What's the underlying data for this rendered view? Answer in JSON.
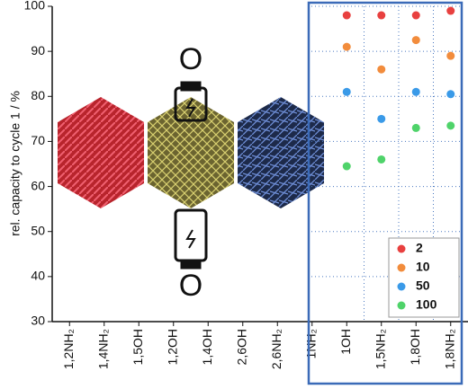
{
  "chart_data": {
    "type": "scatter",
    "ylabel": "rel. capacity to cycle 1 / %",
    "categories": [
      "1,2NH₂",
      "1,4NH₂",
      "1,5OH",
      "1,2OH",
      "1,4OH",
      "2,6OH",
      "2,6NH₂",
      "1NH₂",
      "1OH",
      "1,5NH₂",
      "1,8OH",
      "1,8NH₂"
    ],
    "series": [
      {
        "name": "2",
        "color": "#e8403f",
        "values": [
          null,
          null,
          null,
          null,
          null,
          null,
          null,
          null,
          98,
          98,
          98,
          99
        ]
      },
      {
        "name": "10",
        "color": "#f28c3c",
        "values": [
          null,
          null,
          null,
          null,
          null,
          null,
          null,
          null,
          91,
          86,
          92.5,
          89
        ]
      },
      {
        "name": "50",
        "color": "#3a9ae8",
        "values": [
          null,
          null,
          null,
          null,
          null,
          null,
          null,
          null,
          81,
          75,
          81,
          80.5
        ]
      },
      {
        "name": "100",
        "color": "#4fd36a",
        "values": [
          null,
          null,
          null,
          null,
          null,
          null,
          null,
          null,
          64.5,
          66,
          73,
          73.5
        ]
      }
    ],
    "ylim": [
      30,
      100
    ],
    "yticks": [
      30,
      40,
      50,
      60,
      70,
      80,
      90,
      100
    ],
    "grid": true,
    "annotations": [
      "O",
      "O"
    ]
  }
}
